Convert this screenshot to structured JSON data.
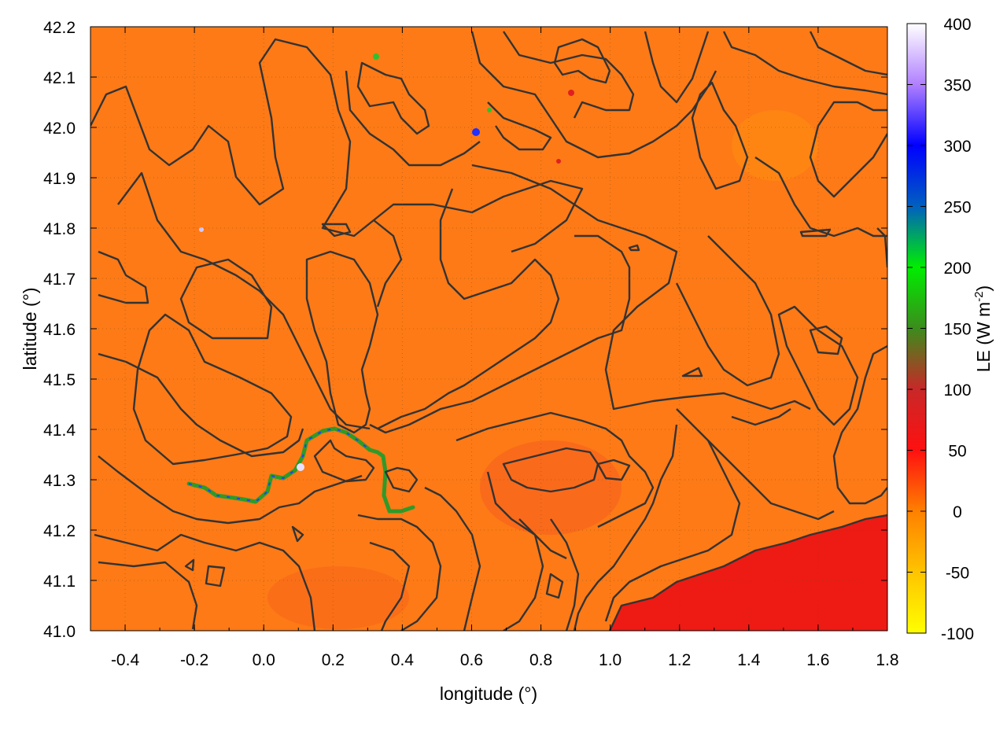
{
  "chart_data": {
    "type": "heatmap",
    "title": "",
    "xlabel": "longitude (°)",
    "ylabel": "latitude (°)",
    "xlim": [
      -0.5,
      1.8
    ],
    "ylim": [
      41.0,
      42.2
    ],
    "xticks": [
      -0.4,
      -0.2,
      0.0,
      0.2,
      0.4,
      0.6,
      0.8,
      1.0,
      1.2,
      1.4,
      1.6,
      1.8
    ],
    "xtick_labels": [
      "-0.4",
      "-0.2",
      "0.0",
      "0.2",
      "0.4",
      "0.6",
      "0.8",
      "1.0",
      "1.2",
      "1.4",
      "1.6",
      "1.8"
    ],
    "yticks": [
      41.0,
      41.1,
      41.2,
      41.3,
      41.4,
      41.5,
      41.6,
      41.7,
      41.8,
      41.9,
      42.0,
      42.1,
      42.2
    ],
    "ytick_labels": [
      "41.0",
      "41.1",
      "41.2",
      "41.3",
      "41.4",
      "41.5",
      "41.6",
      "41.7",
      "41.8",
      "41.9",
      "42.0",
      "42.1",
      "42.2"
    ],
    "grid": true,
    "colorbar": {
      "label": "LE (W m-2)",
      "range": [
        -100,
        400
      ],
      "ticks": [
        -100,
        -50,
        0,
        50,
        100,
        150,
        200,
        250,
        300,
        350,
        400
      ],
      "tick_labels": [
        "-100",
        "-50",
        "0",
        "50",
        "100",
        "150",
        "200",
        "250",
        "300",
        "350",
        "400"
      ],
      "stops": [
        {
          "value": -100,
          "color": "#ffff00"
        },
        {
          "value": -50,
          "color": "#ffc400"
        },
        {
          "value": 0,
          "color": "#ff8000"
        },
        {
          "value": 50,
          "color": "#ff1010"
        },
        {
          "value": 100,
          "color": "#c82828"
        },
        {
          "value": 150,
          "color": "#3c8c1c"
        },
        {
          "value": 200,
          "color": "#00ee00"
        },
        {
          "value": 250,
          "color": "#0060c0"
        },
        {
          "value": 300,
          "color": "#0000ff"
        },
        {
          "value": 350,
          "color": "#b080ff"
        },
        {
          "value": 400,
          "color": "#ffffff"
        }
      ]
    },
    "background_value_approx": 5,
    "regions": [
      {
        "name": "southeast coastal strip",
        "value_approx": 60
      },
      {
        "name": "river channel",
        "value_range": [
          100,
          350
        ]
      }
    ],
    "contour_color": "#333333"
  }
}
